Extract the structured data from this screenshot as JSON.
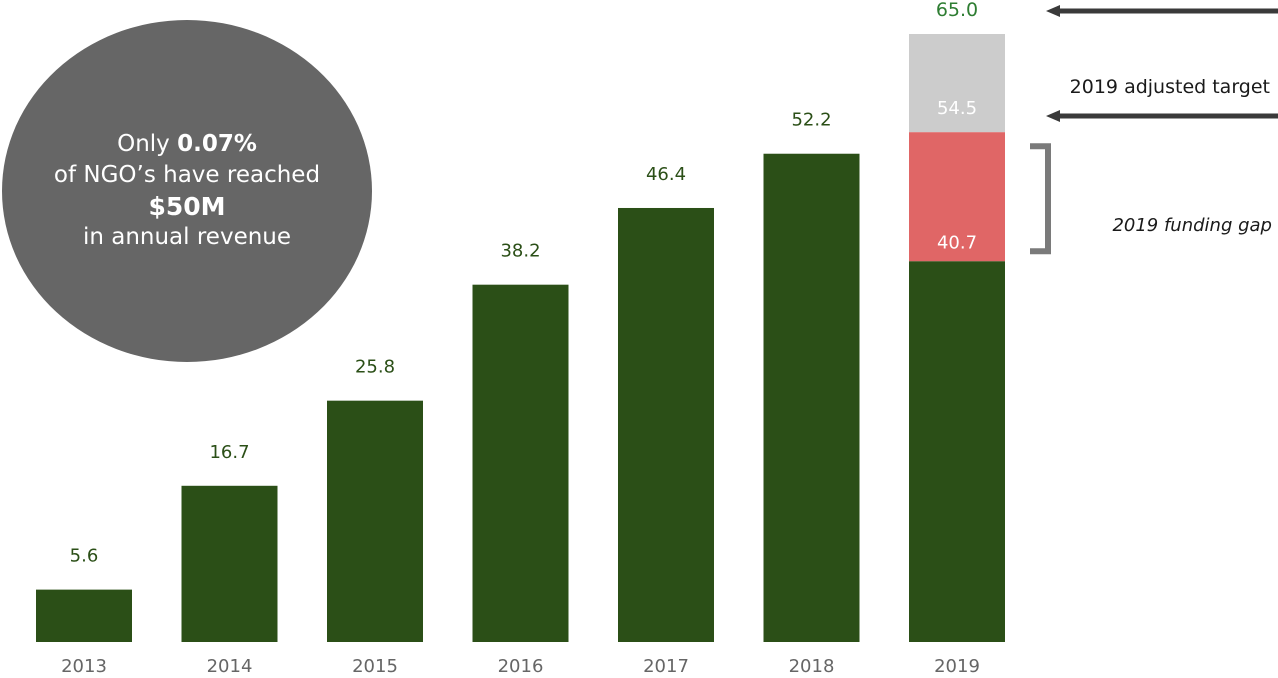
{
  "colors": {
    "actual": "#2b4f17",
    "gap": "#e06666",
    "adjusted_target": "#cccccc",
    "callout_bg": "#666666",
    "label_dark": "#2b4f17",
    "label_top": "#2e7d32",
    "label_light": "#ffffff",
    "arrow": "#3a3a3a",
    "bracket": "#7a7a7a",
    "axis_text": "#666666"
  },
  "callout": {
    "line1_prefix": "Only",
    "line1_value": "0.07%",
    "line2": "of NGO’s have reached",
    "line3": "$50M",
    "line4": "in annual revenue"
  },
  "annotations": {
    "adjusted_target": "2019 adjusted target",
    "funding_gap": "2019 funding gap"
  },
  "chart_data": {
    "type": "bar",
    "categories": [
      "2013",
      "2014",
      "2015",
      "2016",
      "2017",
      "2018",
      "2019"
    ],
    "values": [
      5.6,
      16.7,
      25.8,
      38.2,
      46.4,
      52.2,
      40.7
    ],
    "labels": [
      "5.6",
      "16.7",
      "25.8",
      "38.2",
      "46.4",
      "52.2",
      "40.7"
    ],
    "stack_2019": {
      "base": 40.7,
      "gap_top": 54.5,
      "target_top": 65.0,
      "labels": {
        "base": "40.7",
        "gap_top": "54.5",
        "target_top": "65.0"
      }
    },
    "ylim": [
      0,
      65
    ],
    "grid": false,
    "legend": "none"
  }
}
